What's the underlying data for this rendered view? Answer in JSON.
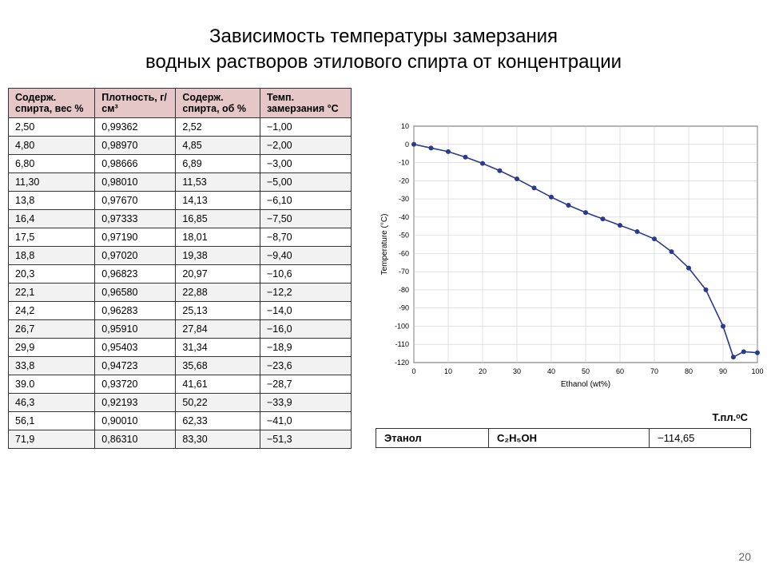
{
  "title_line1": "Зависимость температуры замерзания",
  "title_line2": "водных растворов этилового спирта от концентрации",
  "table": {
    "headers": [
      "Содерж. спирта, вес %",
      "Плотность, г/см³",
      "Содерж. спирта, об %",
      "Темп. замерзания °C"
    ],
    "rows": [
      [
        "2,50",
        "0,99362",
        "2,52",
        "−1,00"
      ],
      [
        "4,80",
        "0,98970",
        "4,85",
        "−2,00"
      ],
      [
        "6,80",
        "0,98666",
        "6,89",
        "−3,00"
      ],
      [
        "11,30",
        "0,98010",
        "11,53",
        "−5,00"
      ],
      [
        "13,8",
        "0,97670",
        "14,13",
        "−6,10"
      ],
      [
        "16,4",
        "0,97333",
        "16,85",
        "−7,50"
      ],
      [
        "17,5",
        "0,97190",
        "18,01",
        "−8,70"
      ],
      [
        "18,8",
        "0,97020",
        "19,38",
        "−9,40"
      ],
      [
        "20,3",
        "0,96823",
        "20,97",
        "−10,6"
      ],
      [
        "22,1",
        "0,96580",
        "22,88",
        "−12,2"
      ],
      [
        "24,2",
        "0,96283",
        "25,13",
        "−14,0"
      ],
      [
        "26,7",
        "0,95910",
        "27,84",
        "−16,0"
      ],
      [
        "29,9",
        "0,95403",
        "31,34",
        "−18,9"
      ],
      [
        "33,8",
        "0,94723",
        "35,68",
        "−23,6"
      ],
      [
        "39.0",
        "0,93720",
        "41,61",
        "−28,7"
      ],
      [
        "46,3",
        "0,92193",
        "50,22",
        "−33,9"
      ],
      [
        "56,1",
        "0,90010",
        "62,33",
        "−41,0"
      ],
      [
        "71,9",
        "0,86310",
        "83,30",
        "−51,3"
      ]
    ]
  },
  "chart": {
    "type": "line",
    "xlabel": "Ethanol (wt%)",
    "ylabel": "Temperature (°C)",
    "xlim": [
      0,
      100
    ],
    "ylim": [
      -120,
      10
    ],
    "xticks": [
      0,
      10,
      20,
      30,
      40,
      50,
      60,
      70,
      80,
      90,
      100
    ],
    "yticks": [
      10,
      0,
      -10,
      -20,
      -30,
      -40,
      -50,
      -60,
      -70,
      -80,
      -90,
      -100,
      -110,
      -120
    ],
    "line_color": "#2a3a8c",
    "marker": "circle",
    "marker_size": 3,
    "grid_color": "#cfcfcf",
    "axis_color": "#000",
    "background": "#ffffff",
    "tick_fontsize": 9,
    "label_fontsize": 10,
    "points": [
      {
        "x": 0,
        "y": 0
      },
      {
        "x": 5,
        "y": -2
      },
      {
        "x": 10,
        "y": -4
      },
      {
        "x": 15,
        "y": -7
      },
      {
        "x": 20,
        "y": -10.5
      },
      {
        "x": 25,
        "y": -14.5
      },
      {
        "x": 30,
        "y": -19
      },
      {
        "x": 35,
        "y": -24
      },
      {
        "x": 40,
        "y": -29
      },
      {
        "x": 45,
        "y": -33.5
      },
      {
        "x": 50,
        "y": -37.5
      },
      {
        "x": 55,
        "y": -41
      },
      {
        "x": 60,
        "y": -44.5
      },
      {
        "x": 65,
        "y": -48
      },
      {
        "x": 70,
        "y": -52
      },
      {
        "x": 75,
        "y": -59
      },
      {
        "x": 80,
        "y": -68
      },
      {
        "x": 85,
        "y": -80
      },
      {
        "x": 90,
        "y": -100
      },
      {
        "x": 93,
        "y": -117
      },
      {
        "x": 96,
        "y": -114
      },
      {
        "x": 100,
        "y": -114.6
      }
    ]
  },
  "melting": {
    "label": "Т.пл.ᵒС",
    "name": "Этанол",
    "formula": "C₂H₅OH",
    "value": "−114,65"
  },
  "page_number": "20"
}
